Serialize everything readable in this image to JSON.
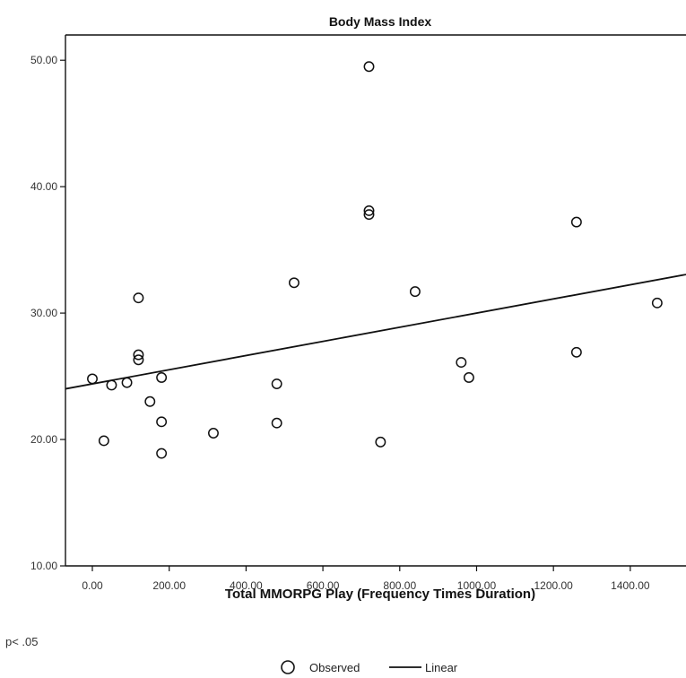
{
  "chart_data": {
    "type": "scatter",
    "title": "Body Mass Index",
    "xlabel": "Total MMORPG Play (Frequency Times Duration)",
    "ylabel": "",
    "xlim": [
      -70,
      1545
    ],
    "ylim": [
      10,
      52
    ],
    "x_ticks": [
      0,
      200,
      400,
      600,
      800,
      1000,
      1200,
      1400
    ],
    "x_tick_labels": [
      "0.00",
      "200.00",
      "400.00",
      "600.00",
      "800.00",
      "1000.00",
      "1200.00",
      "1400.00"
    ],
    "y_ticks": [
      10,
      20,
      30,
      40,
      50
    ],
    "y_tick_labels": [
      "10.00",
      "20.00",
      "30.00",
      "40.00",
      "50.00"
    ],
    "grid": false,
    "legend_placement": "bottom-center",
    "series": [
      {
        "name": "Observed",
        "marker": "open-circle",
        "points": [
          [
            0,
            24.8
          ],
          [
            30,
            19.9
          ],
          [
            50,
            24.3
          ],
          [
            90,
            24.5
          ],
          [
            120,
            31.2
          ],
          [
            120,
            26.7
          ],
          [
            120,
            26.3
          ],
          [
            150,
            23.0
          ],
          [
            180,
            24.9
          ],
          [
            180,
            21.4
          ],
          [
            180,
            18.9
          ],
          [
            315,
            20.5
          ],
          [
            480,
            24.4
          ],
          [
            480,
            21.3
          ],
          [
            525,
            32.4
          ],
          [
            720,
            49.5
          ],
          [
            720,
            38.1
          ],
          [
            720,
            37.8
          ],
          [
            750,
            19.8
          ],
          [
            840,
            31.7
          ],
          [
            960,
            26.1
          ],
          [
            980,
            24.9
          ],
          [
            1260,
            37.2
          ],
          [
            1260,
            26.9
          ],
          [
            1470,
            30.8
          ]
        ]
      },
      {
        "name": "Linear",
        "line": "fit",
        "intercept": 24.4,
        "slope": 0.0056
      }
    ],
    "annotations": [
      "p< .05"
    ]
  },
  "colors": {
    "ink": "#111111",
    "background": "#ffffff"
  }
}
